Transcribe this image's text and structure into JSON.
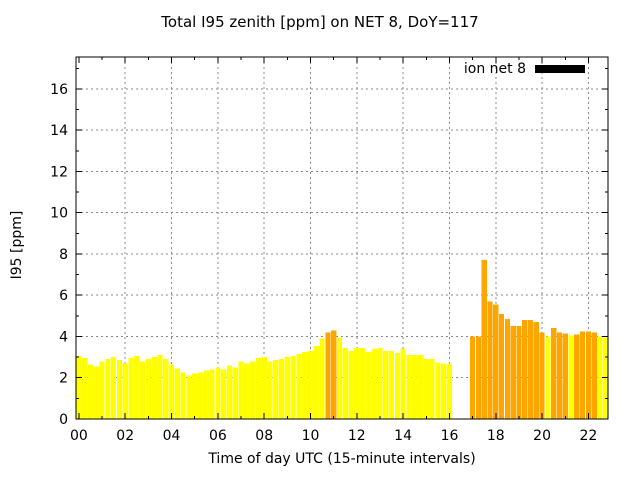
{
  "chart_data": {
    "type": "bar",
    "title": "Total I95 zenith [ppm] on NET 8, DoY=117",
    "xlabel": "Time of day UTC (15-minute intervals)",
    "ylabel": "I95 [ppm]",
    "legend": [
      {
        "label": "ion net 8",
        "swatch_color": "#000000"
      }
    ],
    "legend_position": "top-right-inside",
    "grid": true,
    "grid_style": "gray-dashed",
    "background_color": "#FFFFFF",
    "border_color": "#000000",
    "grid_color": "#888888",
    "bar_colors": {
      "yellow": "#FFFF00",
      "orange": "#FFA500"
    },
    "interval_minutes": 15,
    "xlim_hours": [
      0,
      22.85
    ],
    "ylim": [
      0,
      17.55
    ],
    "xtick_hours": [
      0,
      2,
      4,
      6,
      8,
      10,
      12,
      14,
      16,
      18,
      20,
      22
    ],
    "xtick_labels": [
      "00",
      "02",
      "04",
      "06",
      "08",
      "10",
      "12",
      "14",
      "16",
      "18",
      "20",
      "22"
    ],
    "ytick_values": [
      0,
      2,
      4,
      6,
      8,
      10,
      12,
      14,
      16
    ],
    "ytick_labels": [
      "0",
      "2",
      "4",
      "6",
      "8",
      "10",
      "12",
      "14",
      "16"
    ],
    "gap_note": "no data bars from 16:15 through 16:45",
    "points": [
      [
        "00:00",
        3.05,
        "yellow"
      ],
      [
        "00:15",
        2.95,
        "yellow"
      ],
      [
        "00:30",
        2.65,
        "yellow"
      ],
      [
        "00:45",
        2.55,
        "yellow"
      ],
      [
        "01:00",
        2.8,
        "yellow"
      ],
      [
        "01:15",
        2.9,
        "yellow"
      ],
      [
        "01:30",
        3.0,
        "yellow"
      ],
      [
        "01:45",
        2.85,
        "yellow"
      ],
      [
        "02:00",
        2.7,
        "yellow"
      ],
      [
        "02:15",
        2.95,
        "yellow"
      ],
      [
        "02:30",
        3.05,
        "yellow"
      ],
      [
        "02:45",
        2.8,
        "yellow"
      ],
      [
        "03:00",
        2.9,
        "yellow"
      ],
      [
        "03:15",
        3.0,
        "yellow"
      ],
      [
        "03:30",
        3.1,
        "yellow"
      ],
      [
        "03:45",
        2.9,
        "yellow"
      ],
      [
        "04:00",
        2.65,
        "yellow"
      ],
      [
        "04:15",
        2.45,
        "yellow"
      ],
      [
        "04:30",
        2.25,
        "yellow"
      ],
      [
        "04:45",
        2.1,
        "yellow"
      ],
      [
        "05:00",
        2.2,
        "yellow"
      ],
      [
        "05:15",
        2.25,
        "yellow"
      ],
      [
        "05:30",
        2.35,
        "yellow"
      ],
      [
        "05:45",
        2.4,
        "yellow"
      ],
      [
        "06:00",
        2.5,
        "yellow"
      ],
      [
        "06:15",
        2.4,
        "yellow"
      ],
      [
        "06:30",
        2.6,
        "yellow"
      ],
      [
        "06:45",
        2.5,
        "yellow"
      ],
      [
        "07:00",
        2.8,
        "yellow"
      ],
      [
        "07:15",
        2.7,
        "yellow"
      ],
      [
        "07:30",
        2.8,
        "yellow"
      ],
      [
        "07:45",
        2.95,
        "yellow"
      ],
      [
        "08:00",
        3.0,
        "yellow"
      ],
      [
        "08:15",
        2.8,
        "yellow"
      ],
      [
        "08:30",
        2.85,
        "yellow"
      ],
      [
        "08:45",
        2.9,
        "yellow"
      ],
      [
        "09:00",
        3.0,
        "yellow"
      ],
      [
        "09:15",
        3.05,
        "yellow"
      ],
      [
        "09:30",
        3.15,
        "yellow"
      ],
      [
        "09:45",
        3.25,
        "yellow"
      ],
      [
        "10:00",
        3.3,
        "yellow"
      ],
      [
        "10:15",
        3.55,
        "yellow"
      ],
      [
        "10:30",
        3.9,
        "yellow"
      ],
      [
        "10:45",
        4.2,
        "orange"
      ],
      [
        "11:00",
        4.3,
        "orange"
      ],
      [
        "11:15",
        3.95,
        "yellow"
      ],
      [
        "11:30",
        3.45,
        "yellow"
      ],
      [
        "11:45",
        3.3,
        "yellow"
      ],
      [
        "12:00",
        3.45,
        "yellow"
      ],
      [
        "12:15",
        3.45,
        "yellow"
      ],
      [
        "12:30",
        3.25,
        "yellow"
      ],
      [
        "12:45",
        3.4,
        "yellow"
      ],
      [
        "13:00",
        3.45,
        "yellow"
      ],
      [
        "13:15",
        3.3,
        "yellow"
      ],
      [
        "13:30",
        3.3,
        "yellow"
      ],
      [
        "13:45",
        3.2,
        "yellow"
      ],
      [
        "14:00",
        3.4,
        "yellow"
      ],
      [
        "14:15",
        3.1,
        "yellow"
      ],
      [
        "14:30",
        3.1,
        "yellow"
      ],
      [
        "14:45",
        3.1,
        "yellow"
      ],
      [
        "15:00",
        2.9,
        "yellow"
      ],
      [
        "15:15",
        2.9,
        "yellow"
      ],
      [
        "15:30",
        2.75,
        "yellow"
      ],
      [
        "15:45",
        2.7,
        "yellow"
      ],
      [
        "16:00",
        2.7,
        "yellow"
      ],
      [
        "16:15",
        null,
        null
      ],
      [
        "16:30",
        null,
        null
      ],
      [
        "16:45",
        null,
        null
      ],
      [
        "17:00",
        4.0,
        "orange"
      ],
      [
        "17:15",
        4.0,
        "orange"
      ],
      [
        "17:30",
        7.7,
        "orange"
      ],
      [
        "17:45",
        5.7,
        "orange"
      ],
      [
        "18:00",
        5.55,
        "orange"
      ],
      [
        "18:15",
        5.1,
        "orange"
      ],
      [
        "18:30",
        4.85,
        "orange"
      ],
      [
        "18:45",
        4.5,
        "orange"
      ],
      [
        "19:00",
        4.5,
        "orange"
      ],
      [
        "19:15",
        4.8,
        "orange"
      ],
      [
        "19:30",
        4.8,
        "orange"
      ],
      [
        "19:45",
        4.7,
        "orange"
      ],
      [
        "20:00",
        4.2,
        "orange"
      ],
      [
        "20:15",
        4.0,
        "yellow"
      ],
      [
        "20:30",
        4.4,
        "orange"
      ],
      [
        "20:45",
        4.2,
        "orange"
      ],
      [
        "21:00",
        4.15,
        "orange"
      ],
      [
        "21:15",
        4.05,
        "yellow"
      ],
      [
        "21:30",
        4.1,
        "orange"
      ],
      [
        "21:45",
        4.25,
        "orange"
      ],
      [
        "22:00",
        4.25,
        "orange"
      ],
      [
        "22:15",
        4.2,
        "orange"
      ],
      [
        "22:30",
        4.0,
        "yellow"
      ],
      [
        "22:45",
        3.95,
        "yellow"
      ]
    ]
  }
}
